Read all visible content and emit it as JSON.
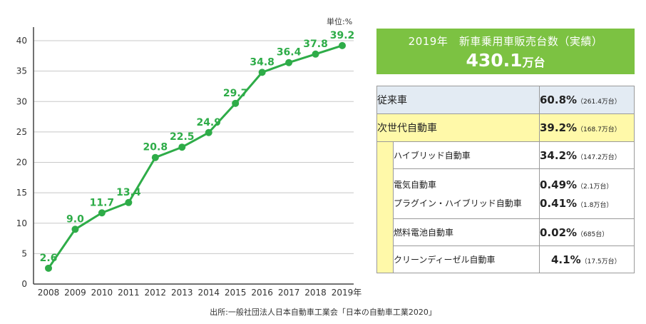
{
  "chart_data": {
    "type": "line",
    "x": [
      "2008",
      "2009",
      "2010",
      "2011",
      "2012",
      "2013",
      "2014",
      "2015",
      "2016",
      "2017",
      "2018",
      "2019年"
    ],
    "values": [
      2.6,
      9.0,
      11.7,
      13.4,
      20.8,
      22.5,
      24.9,
      29.7,
      34.8,
      36.4,
      37.8,
      39.2
    ],
    "data_labels": [
      "2.6",
      "9.0",
      "11.7",
      "13.4",
      "20.8",
      "22.5",
      "24.9",
      "29.7",
      "34.8",
      "36.4",
      "37.8",
      "39.2"
    ],
    "y_ticks": [
      0,
      5,
      10,
      15,
      20,
      25,
      30,
      35,
      40
    ],
    "ylim": [
      0,
      42
    ],
    "unit_label": "単位:%",
    "grid": "horizontal",
    "color": "#2eac48"
  },
  "summary": {
    "title": "2019年　新車乗用車販売台数（実績）",
    "value": "430.1",
    "value_unit": "万台"
  },
  "breakdown": {
    "conventional": {
      "label": "従来車",
      "pct": "60.8%",
      "sub": "（261.4万台）"
    },
    "next_gen": {
      "label": "次世代自動車",
      "pct": "39.2%",
      "sub": "（168.7万台）"
    },
    "hybrid": {
      "label": "ハイブリッド自動車",
      "pct": "34.2%",
      "sub": "（147.2万台）"
    },
    "ev": {
      "label": "電気自動車",
      "pct": "0.49%",
      "sub": "（2.1万台）"
    },
    "phv": {
      "label": "プラグイン・ハイブリッド自動車",
      "pct": "0.41%",
      "sub": "（1.8万台）"
    },
    "fcv": {
      "label": "燃料電池自動車",
      "pct": "0.02%",
      "sub": "（685台）"
    },
    "diesel": {
      "label": "クリーンディーゼル自動車",
      "pct": "4.1%",
      "sub": "（17.5万台）"
    }
  },
  "colors": {
    "accent": "#7cc242",
    "line": "#2eac48",
    "conventional_bg": "#e3ebf3",
    "next_gen_bg": "#fff9a9"
  },
  "source": "出所:一般社団法人日本自動車工業会「日本の自動車工業2020」"
}
